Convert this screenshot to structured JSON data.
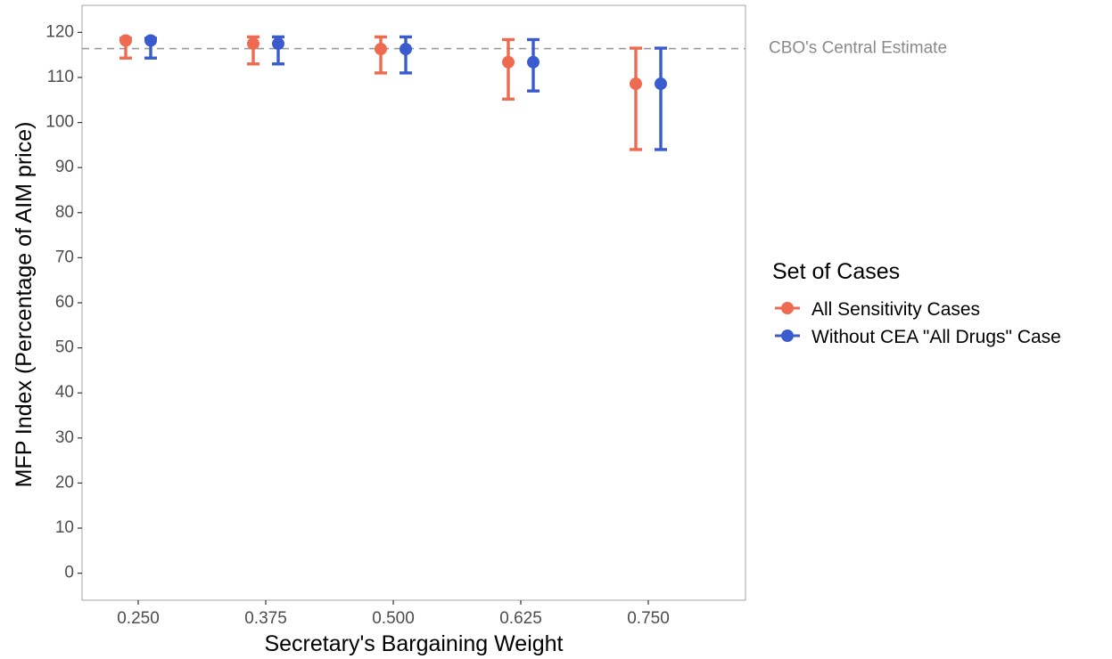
{
  "chart_data": {
    "type": "errorbar",
    "xlabel": "Secretary's Bargaining Weight",
    "ylabel": "MFP Index (Percentage of AIM price)",
    "categories": [
      "0.250",
      "0.375",
      "0.500",
      "0.625",
      "0.750"
    ],
    "ylim": [
      -6,
      126
    ],
    "yticks": [
      0,
      10,
      20,
      30,
      40,
      50,
      60,
      70,
      80,
      90,
      100,
      110,
      120
    ],
    "grid": false,
    "reference_line": {
      "y": 116.4,
      "label": "CBO's Central Estimate",
      "style": "dashed",
      "color": "#999999"
    },
    "legend": {
      "title": "Set of Cases",
      "position": "right"
    },
    "series": [
      {
        "name": "All Sensitivity Cases",
        "color": "#ee6a50",
        "points": [
          {
            "x": "0.250",
            "y": 118.2,
            "low": 114.3,
            "high": 118.7
          },
          {
            "x": "0.375",
            "y": 117.5,
            "low": 113.0,
            "high": 119.0
          },
          {
            "x": "0.500",
            "y": 116.3,
            "low": 111.0,
            "high": 119.0
          },
          {
            "x": "0.625",
            "y": 113.4,
            "low": 105.2,
            "high": 118.4
          },
          {
            "x": "0.750",
            "y": 108.6,
            "low": 94.0,
            "high": 116.5
          }
        ]
      },
      {
        "name": "Without CEA \"All Drugs\" Case",
        "color": "#3a5bcd",
        "points": [
          {
            "x": "0.250",
            "y": 118.2,
            "low": 114.3,
            "high": 118.7
          },
          {
            "x": "0.375",
            "y": 117.5,
            "low": 113.0,
            "high": 119.0
          },
          {
            "x": "0.500",
            "y": 116.3,
            "low": 111.0,
            "high": 119.0
          },
          {
            "x": "0.625",
            "y": 113.4,
            "low": 107.0,
            "high": 118.4
          },
          {
            "x": "0.750",
            "y": 108.6,
            "low": 94.0,
            "high": 116.5
          }
        ]
      }
    ]
  }
}
